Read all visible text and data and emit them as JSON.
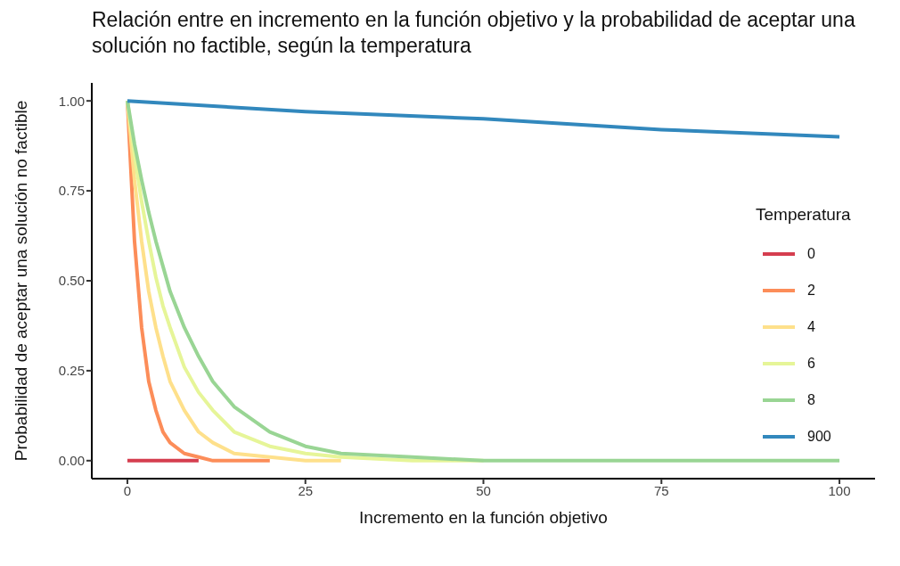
{
  "chart_data": {
    "type": "line",
    "title": "Relación entre en incremento en la función objetivo y la probabilidad de aceptar una solución no factible,  según la temperatura",
    "xlabel": "Incremento en la función objetivo",
    "ylabel": "Probabilidad de aceptar una solución no factible",
    "legend_title": "Temperatura",
    "legend": "right",
    "grid": false,
    "marker": "none",
    "line_style": "solid",
    "xlim": [
      -5,
      105
    ],
    "xticks": [
      0,
      25,
      50,
      75,
      100
    ],
    "ylim": [
      -0.05,
      1.05
    ],
    "yticks": [
      {
        "value": 0,
        "label": "0.00"
      },
      {
        "value": 0.25,
        "label": "0.25"
      },
      {
        "value": 0.5,
        "label": "0.50"
      },
      {
        "value": 0.75,
        "label": "0.75"
      },
      {
        "value": 1,
        "label": "1.00"
      }
    ],
    "series": [
      {
        "name": "0",
        "color": "#d53e4f",
        "x": [
          0,
          10
        ],
        "values": [
          0,
          0
        ]
      },
      {
        "name": "2",
        "color": "#fc8d59",
        "x": [
          0,
          1,
          2,
          3,
          4,
          5,
          6,
          8,
          10,
          12,
          15,
          20
        ],
        "values": [
          1,
          0.61,
          0.37,
          0.22,
          0.14,
          0.08,
          0.05,
          0.02,
          0.01,
          0,
          0,
          0
        ]
      },
      {
        "name": "4",
        "color": "#fee08b",
        "x": [
          0,
          1,
          2,
          3,
          4,
          5,
          6,
          8,
          10,
          12,
          15,
          20,
          25,
          30
        ],
        "values": [
          1,
          0.78,
          0.61,
          0.47,
          0.37,
          0.29,
          0.22,
          0.14,
          0.08,
          0.05,
          0.02,
          0.01,
          0,
          0
        ]
      },
      {
        "name": "6",
        "color": "#e6f598",
        "x": [
          0,
          1,
          2,
          3,
          4,
          5,
          6,
          8,
          10,
          12,
          15,
          20,
          25,
          30,
          40,
          50
        ],
        "values": [
          1,
          0.85,
          0.72,
          0.61,
          0.51,
          0.43,
          0.37,
          0.26,
          0.19,
          0.14,
          0.08,
          0.04,
          0.02,
          0.01,
          0,
          0
        ]
      },
      {
        "name": "8",
        "color": "#99d594",
        "x": [
          0,
          1,
          2,
          3,
          4,
          5,
          6,
          8,
          10,
          12,
          15,
          20,
          25,
          30,
          40,
          50,
          60,
          80,
          100
        ],
        "values": [
          1,
          0.88,
          0.78,
          0.69,
          0.61,
          0.54,
          0.47,
          0.37,
          0.29,
          0.22,
          0.15,
          0.08,
          0.04,
          0.02,
          0.01,
          0,
          0,
          0,
          0
        ]
      },
      {
        "name": "900",
        "color": "#3288bd",
        "x": [
          0,
          25,
          50,
          75,
          100
        ],
        "values": [
          1,
          0.97,
          0.95,
          0.92,
          0.9
        ]
      }
    ]
  }
}
